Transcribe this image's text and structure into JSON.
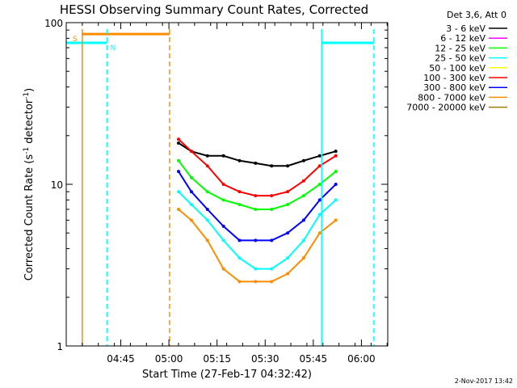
{
  "chart_data": {
    "type": "line",
    "title": "HESSI Observing Summary Count Rates, Corrected",
    "xlabel": "Start Time (27-Feb-17 04:32:42)",
    "ylabel": "Corrected Count Rate (s",
    "ylabel_sup1": "-1",
    "ylabel_mid": " detector",
    "ylabel_sup2": "-1",
    "ylabel_end": ")",
    "yscale": "log",
    "ylim": [
      1,
      100
    ],
    "xlim_minutes": [
      4.5,
      6.17
    ],
    "y_ticks": [
      {
        "value": 1,
        "label": "1"
      },
      {
        "value": 10,
        "label": "10"
      },
      {
        "value": 100,
        "label": "100"
      }
    ],
    "x_ticks": [
      {
        "value": 4.7833,
        "label": "04:45"
      },
      {
        "value": 5.0333,
        "label": "05:00"
      },
      {
        "value": 5.2833,
        "label": "05:15"
      },
      {
        "value": 5.5333,
        "label": "05:30"
      },
      {
        "value": 5.7833,
        "label": "05:45"
      },
      {
        "value": 6.0333,
        "label": "06:00"
      }
    ],
    "legend": {
      "position": "top-right",
      "header": "Det 3,6, Att 0",
      "entries": [
        {
          "label": "3 - 6 keV",
          "color": "#000000"
        },
        {
          "label": "6 - 12 keV",
          "color": "#ff00ff"
        },
        {
          "label": "12 - 25 keV",
          "color": "#00ff00"
        },
        {
          "label": "25 - 50 keV",
          "color": "#00ffff"
        },
        {
          "label": "50 - 100 keV",
          "color": "#ffff00"
        },
        {
          "label": "100 - 300 keV",
          "color": "#ff0000"
        },
        {
          "label": "300 - 800 keV",
          "color": "#0000ff"
        },
        {
          "label": "800 - 7000 keV",
          "color": "#ff8c00"
        },
        {
          "label": "7000 - 20000 keV",
          "color": "#a08000"
        }
      ]
    },
    "flags": [
      {
        "label": "S",
        "color": "#ff8c00",
        "value": 85,
        "start": 4.5833,
        "end": 5.0367
      },
      {
        "label": "N",
        "color": "#00ffff",
        "value": 75,
        "start": 4.5,
        "end": 4.7117
      },
      {
        "label": "",
        "color": "#00ffff",
        "value": 75,
        "start": 5.8267,
        "end": 6.0983
      }
    ],
    "vertical_markers": [
      {
        "time": 4.5833,
        "color": "#ff8c00",
        "style": "solid"
      },
      {
        "time": 5.0367,
        "color": "#ff8c00",
        "style": "dashed"
      },
      {
        "time": 4.7117,
        "color": "#00ffff",
        "style": "dashed"
      },
      {
        "time": 5.8267,
        "color": "#00ffff",
        "style": "solid"
      },
      {
        "time": 6.0983,
        "color": "#00ffff",
        "style": "dashed"
      }
    ],
    "series": [
      {
        "name": "3 - 6 keV",
        "color": "#000000",
        "x": [
          5.0833,
          5.15,
          5.2333,
          5.3167,
          5.4,
          5.4833,
          5.5667,
          5.65,
          5.7333,
          5.8167,
          5.9
        ],
        "y": [
          18,
          16,
          15,
          15,
          14,
          13.5,
          13,
          13,
          14,
          15,
          16
        ]
      },
      {
        "name": "100 - 300 keV",
        "color": "#ff0000",
        "x": [
          5.0833,
          5.15,
          5.2333,
          5.3167,
          5.4,
          5.4833,
          5.5667,
          5.65,
          5.7333,
          5.8167,
          5.9
        ],
        "y": [
          19,
          16,
          13,
          10,
          9,
          8.5,
          8.5,
          9,
          10.5,
          13,
          15
        ]
      },
      {
        "name": "12 - 25 keV",
        "color": "#00ff00",
        "x": [
          5.0833,
          5.15,
          5.2333,
          5.3167,
          5.4,
          5.4833,
          5.5667,
          5.65,
          5.7333,
          5.8167,
          5.9
        ],
        "y": [
          14,
          11,
          9,
          8,
          7.5,
          7,
          7,
          7.5,
          8.5,
          10,
          12
        ]
      },
      {
        "name": "300 - 800 keV",
        "color": "#0000ff",
        "x": [
          5.0833,
          5.15,
          5.2333,
          5.3167,
          5.4,
          5.4833,
          5.5667,
          5.65,
          5.7333,
          5.8167,
          5.9
        ],
        "y": [
          12,
          9,
          7,
          5.5,
          4.5,
          4.5,
          4.5,
          5,
          6,
          8,
          10
        ]
      },
      {
        "name": "25 - 50 keV",
        "color": "#00ffff",
        "x": [
          5.0833,
          5.15,
          5.2333,
          5.3167,
          5.4,
          5.4833,
          5.5667,
          5.65,
          5.7333,
          5.8167,
          5.9
        ],
        "y": [
          9,
          7.5,
          6,
          4.5,
          3.5,
          3,
          3,
          3.5,
          4.5,
          6.5,
          8
        ]
      },
      {
        "name": "800 - 7000 keV",
        "color": "#ff8c00",
        "x": [
          5.0833,
          5.15,
          5.2333,
          5.3167,
          5.4,
          5.4833,
          5.5667,
          5.65,
          5.7333,
          5.8167,
          5.9
        ],
        "y": [
          7,
          6,
          4.5,
          3,
          2.5,
          2.5,
          2.5,
          2.8,
          3.5,
          5,
          6
        ]
      }
    ]
  },
  "footer": {
    "date_stamp": "2-Nov-2017 13:42"
  }
}
